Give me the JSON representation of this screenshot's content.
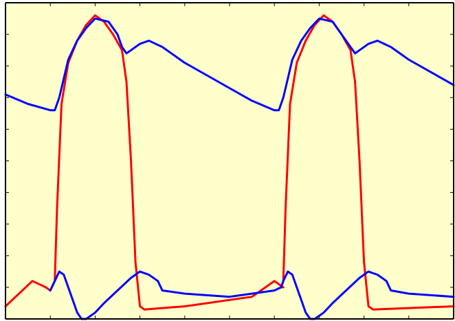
{
  "chart_data": {
    "type": "line",
    "title": "",
    "xlabel": "",
    "ylabel": "",
    "xlim": [
      0,
      100
    ],
    "ylim": [
      0,
      100
    ],
    "grid": false,
    "legend": "none",
    "background_color": "#ffffcc",
    "axis_color": "#000000",
    "x_ticks": [
      0,
      10,
      20,
      30,
      40,
      50,
      60,
      70,
      80,
      90,
      100
    ],
    "y_ticks": [
      0,
      10,
      20,
      30,
      40,
      50,
      60,
      70,
      80,
      90,
      100
    ],
    "series": [
      {
        "color": "#ff0000",
        "points": [
          [
            0,
            4
          ],
          [
            3,
            8
          ],
          [
            6,
            12
          ],
          [
            9,
            10
          ],
          [
            10,
            9
          ],
          [
            11,
            12
          ],
          [
            11.5,
            35
          ],
          [
            12.5,
            68
          ],
          [
            14,
            81
          ],
          [
            16,
            88
          ],
          [
            18,
            93
          ],
          [
            20,
            96
          ],
          [
            22,
            94
          ],
          [
            24,
            90
          ],
          [
            26,
            85
          ],
          [
            27,
            75
          ],
          [
            28,
            50
          ],
          [
            29,
            18
          ],
          [
            30,
            4
          ],
          [
            31,
            3
          ],
          [
            40,
            4
          ],
          [
            50,
            6
          ],
          [
            55,
            7
          ],
          [
            58,
            10
          ],
          [
            60,
            12
          ],
          [
            62,
            10
          ],
          [
            61.5,
            10
          ],
          [
            62,
            12
          ],
          [
            62.5,
            35
          ],
          [
            63.5,
            68
          ],
          [
            65,
            81
          ],
          [
            67,
            88
          ],
          [
            69,
            93
          ],
          [
            71,
            96
          ],
          [
            73,
            94
          ],
          [
            75,
            90
          ],
          [
            77,
            85
          ],
          [
            78,
            75
          ],
          [
            79,
            50
          ],
          [
            80,
            18
          ],
          [
            81,
            4
          ],
          [
            82,
            3
          ],
          [
            100,
            4
          ]
        ]
      },
      {
        "color": "#0000ff",
        "points": [
          [
            0,
            71
          ],
          [
            5,
            68
          ],
          [
            10,
            66
          ],
          [
            11,
            66
          ],
          [
            12,
            70
          ],
          [
            14,
            82
          ],
          [
            16,
            88
          ],
          [
            18,
            92
          ],
          [
            20,
            95
          ],
          [
            23,
            94
          ],
          [
            25,
            90
          ],
          [
            26,
            86
          ],
          [
            27,
            84
          ],
          [
            28,
            85
          ],
          [
            30,
            87
          ],
          [
            32,
            88
          ],
          [
            35,
            86
          ],
          [
            40,
            81
          ],
          [
            45,
            77
          ],
          [
            50,
            73
          ],
          [
            55,
            69
          ],
          [
            60,
            66
          ],
          [
            61,
            66
          ],
          [
            62,
            70
          ],
          [
            64,
            82
          ],
          [
            66,
            88
          ],
          [
            68,
            92
          ],
          [
            70,
            95
          ],
          [
            73,
            94
          ],
          [
            75,
            90
          ],
          [
            77,
            86
          ],
          [
            78,
            84
          ],
          [
            79,
            85
          ],
          [
            81,
            87
          ],
          [
            83,
            88
          ],
          [
            86,
            86
          ],
          [
            90,
            82
          ],
          [
            95,
            78
          ],
          [
            100,
            74
          ]
        ]
      },
      {
        "color": "#0000ff",
        "points": [
          [
            10,
            9
          ],
          [
            11,
            12
          ],
          [
            12,
            15
          ],
          [
            13,
            14
          ],
          [
            14,
            10
          ],
          [
            15,
            6
          ],
          [
            16,
            2
          ],
          [
            17,
            0
          ],
          [
            18,
            0
          ],
          [
            20,
            2
          ],
          [
            22,
            5
          ],
          [
            25,
            9
          ],
          [
            28,
            13
          ],
          [
            30,
            15
          ],
          [
            32,
            14
          ],
          [
            34,
            12
          ],
          [
            35,
            9
          ],
          [
            40,
            8
          ],
          [
            50,
            7
          ],
          [
            60,
            9
          ],
          [
            61.5,
            10
          ],
          [
            62,
            12
          ],
          [
            63,
            15
          ],
          [
            64,
            14
          ],
          [
            65,
            10
          ],
          [
            66,
            6
          ],
          [
            67,
            2
          ],
          [
            68,
            0
          ],
          [
            69,
            0
          ],
          [
            71,
            2
          ],
          [
            73,
            5
          ],
          [
            76,
            9
          ],
          [
            79,
            13
          ],
          [
            81,
            15
          ],
          [
            83,
            14
          ],
          [
            85,
            12
          ],
          [
            86,
            9
          ],
          [
            90,
            8
          ],
          [
            100,
            7
          ]
        ]
      }
    ]
  }
}
